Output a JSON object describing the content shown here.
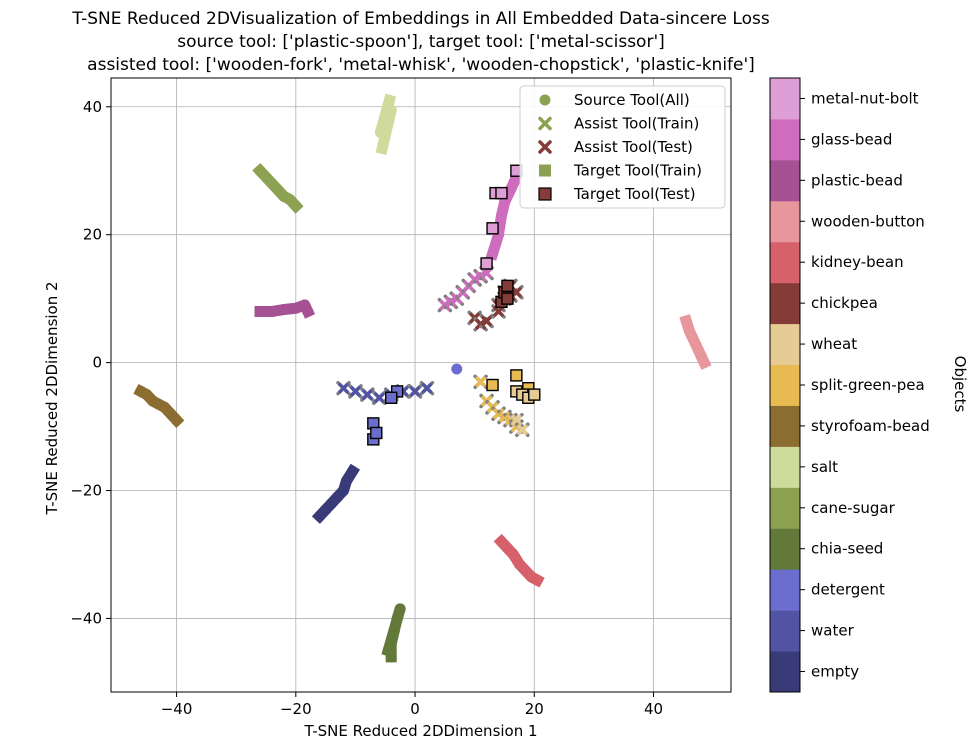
{
  "chart_data": {
    "type": "scatter",
    "title_lines": [
      "T-SNE Reduced 2DVisualization of Embeddings in All Embedded Data-sincere Loss",
      "source tool: ['plastic-spoon'], target tool: ['metal-scissor']",
      "assisted tool: ['wooden-fork', 'metal-whisk', 'wooden-chopstick', 'plastic-knife']"
    ],
    "xlabel": "T-SNE Reduced 2DDimension 1",
    "ylabel": "T-SNE Reduced 2DDimension 2",
    "xlim": [
      -51,
      53
    ],
    "ylim": [
      -51.5,
      44.5
    ],
    "xticks": [
      -40,
      -20,
      0,
      20,
      40
    ],
    "yticks": [
      -40,
      -20,
      0,
      20,
      40
    ],
    "xtick_labels": [
      "−40",
      "−20",
      "0",
      "20",
      "40"
    ],
    "ytick_labels": [
      "−40",
      "−20",
      "0",
      "20",
      "40"
    ],
    "grid": true,
    "legend": {
      "placement": "top-right",
      "entries": [
        {
          "label": "Source Tool(All)",
          "marker": "circle",
          "color": "#8ca252"
        },
        {
          "label": "Assist Tool(Train)",
          "marker": "x",
          "color": "#8ca252"
        },
        {
          "label": "Assist Tool(Test)",
          "marker": "x",
          "color": "#843c39"
        },
        {
          "label": "Target Tool(Train)",
          "marker": "square",
          "color": "#8ca252"
        },
        {
          "label": "Target Tool(Test)",
          "marker": "square",
          "color": "#843c39"
        }
      ]
    },
    "colorbar": {
      "label": "Objects",
      "classes": [
        {
          "name": "empty",
          "color": "#393b79"
        },
        {
          "name": "water",
          "color": "#5254a3"
        },
        {
          "name": "detergent",
          "color": "#6b6ecf"
        },
        {
          "name": "chia-seed",
          "color": "#637939"
        },
        {
          "name": "cane-sugar",
          "color": "#8ca252"
        },
        {
          "name": "salt",
          "color": "#cedb9c"
        },
        {
          "name": "styrofoam-bead",
          "color": "#8c6d31"
        },
        {
          "name": "split-green-pea",
          "color": "#e7ba52"
        },
        {
          "name": "wheat",
          "color": "#e7cb94"
        },
        {
          "name": "chickpea",
          "color": "#843c39"
        },
        {
          "name": "kidney-bean",
          "color": "#d6616b"
        },
        {
          "name": "wooden-button",
          "color": "#e7969c"
        },
        {
          "name": "plastic-bead",
          "color": "#a55194"
        },
        {
          "name": "glass-bead",
          "color": "#ce6dbd"
        },
        {
          "name": "metal-nut-bolt",
          "color": "#de9ed6"
        }
      ]
    },
    "source_clusters": [
      {
        "object": "salt",
        "points": [
          [
            -5.5,
            33.5
          ],
          [
            -5,
            35.5
          ],
          [
            -4.5,
            37.5
          ],
          [
            -4,
            39.5
          ],
          [
            -5.8,
            36
          ],
          [
            -4.3,
            41
          ]
        ]
      },
      {
        "object": "cane-sugar",
        "points": [
          [
            -26,
            30
          ],
          [
            -25,
            29
          ],
          [
            -24,
            28
          ],
          [
            -23,
            27
          ],
          [
            -22,
            26
          ],
          [
            -21,
            25.5
          ],
          [
            -20,
            24.5
          ]
        ]
      },
      {
        "object": "plastic-bead",
        "points": [
          [
            -26,
            8
          ],
          [
            -24,
            8
          ],
          [
            -22,
            8.3
          ],
          [
            -20,
            8.5
          ],
          [
            -18.5,
            9
          ],
          [
            -18,
            8
          ]
        ]
      },
      {
        "object": "styrofoam-bead",
        "points": [
          [
            -46,
            -4.5
          ],
          [
            -45,
            -5
          ],
          [
            -44,
            -6
          ],
          [
            -43,
            -6.5
          ],
          [
            -42,
            -7
          ],
          [
            -41,
            -8
          ],
          [
            -40,
            -9
          ]
        ]
      },
      {
        "object": "wooden-button",
        "points": [
          [
            45.5,
            6.5
          ],
          [
            46,
            5
          ],
          [
            46.5,
            4
          ],
          [
            47,
            3
          ],
          [
            47.5,
            2
          ],
          [
            48,
            1
          ],
          [
            48.5,
            0
          ]
        ]
      },
      {
        "object": "empty",
        "points": [
          [
            -16,
            -24
          ],
          [
            -15,
            -23
          ],
          [
            -14,
            -22
          ],
          [
            -13,
            -21
          ],
          [
            -12,
            -20
          ],
          [
            -11.5,
            -18.5
          ],
          [
            -10.5,
            -17
          ]
        ]
      },
      {
        "object": "kidney-bean",
        "points": [
          [
            14.5,
            -28
          ],
          [
            15.5,
            -29
          ],
          [
            16.5,
            -30
          ],
          [
            17.5,
            -31.5
          ],
          [
            18.5,
            -32.5
          ],
          [
            19.5,
            -33.5
          ],
          [
            20.5,
            -34
          ]
        ]
      },
      {
        "object": "chia-seed",
        "points": [
          [
            -4,
            -46
          ],
          [
            -4,
            -44
          ],
          [
            -3.5,
            -42
          ],
          [
            -3,
            -40
          ],
          [
            -2.5,
            -38.5
          ],
          [
            -4.5,
            -45
          ]
        ]
      },
      {
        "object": "glass-bead",
        "points": [
          [
            13,
            17
          ],
          [
            14,
            20
          ],
          [
            14.5,
            23
          ],
          [
            15,
            25
          ],
          [
            16,
            27
          ],
          [
            17,
            29
          ]
        ]
      },
      {
        "object": "detergent",
        "points": [
          [
            7,
            -1
          ]
        ]
      }
    ],
    "assist_train_clusters": [
      {
        "object": "glass-bead",
        "points": [
          [
            5,
            9
          ],
          [
            6,
            9.5
          ],
          [
            7,
            10
          ],
          [
            8,
            11
          ],
          [
            9,
            12
          ],
          [
            10,
            13
          ],
          [
            11,
            13.5
          ],
          [
            12,
            14
          ]
        ]
      },
      {
        "object": "water",
        "points": [
          [
            -12,
            -4
          ],
          [
            -10,
            -4.5
          ],
          [
            -8,
            -5
          ],
          [
            -6,
            -5.5
          ],
          [
            -4,
            -5
          ],
          [
            -2,
            -4.5
          ],
          [
            0,
            -4.5
          ],
          [
            2,
            -4
          ]
        ]
      },
      {
        "object": "split-green-pea",
        "points": [
          [
            11,
            -3
          ],
          [
            12,
            -6
          ],
          [
            13,
            -7
          ],
          [
            14,
            -8
          ],
          [
            15,
            -8.5
          ],
          [
            16,
            -9
          ],
          [
            17,
            -10
          ]
        ]
      },
      {
        "object": "chickpea",
        "points": [
          [
            10,
            7
          ],
          [
            11,
            6
          ],
          [
            12,
            6.5
          ],
          [
            14,
            9
          ],
          [
            15,
            11
          ],
          [
            16,
            12
          ]
        ]
      }
    ],
    "assist_test_clusters": [
      {
        "object": "chickpea",
        "points": [
          [
            14,
            8
          ],
          [
            15,
            10
          ],
          [
            16,
            10.5
          ],
          [
            17,
            11
          ]
        ]
      },
      {
        "object": "wheat",
        "points": [
          [
            17,
            -9
          ],
          [
            18,
            -10.5
          ]
        ]
      }
    ],
    "target_train_clusters": [
      {
        "object": "metal-nut-bolt",
        "points": [
          [
            12,
            15.5
          ],
          [
            13,
            21
          ],
          [
            13.5,
            26.5
          ],
          [
            14.5,
            26.5
          ],
          [
            17,
            30
          ]
        ]
      }
    ],
    "target_test_clusters": [
      {
        "object": "chickpea",
        "points": [
          [
            14.5,
            9.5
          ],
          [
            15,
            11
          ],
          [
            15.5,
            12
          ],
          [
            15.5,
            10
          ]
        ]
      },
      {
        "object": "split-green-pea",
        "points": [
          [
            13,
            -3.5
          ],
          [
            17,
            -2
          ],
          [
            19,
            -4
          ]
        ]
      },
      {
        "object": "wheat",
        "points": [
          [
            17,
            -4.5
          ],
          [
            18,
            -5
          ],
          [
            19,
            -5.5
          ],
          [
            20,
            -5
          ]
        ]
      },
      {
        "object": "detergent",
        "points": [
          [
            -7,
            -9.5
          ],
          [
            -7,
            -12
          ],
          [
            -6.5,
            -11
          ],
          [
            -3,
            -4.5
          ],
          [
            -4,
            -5.5
          ]
        ]
      }
    ]
  }
}
